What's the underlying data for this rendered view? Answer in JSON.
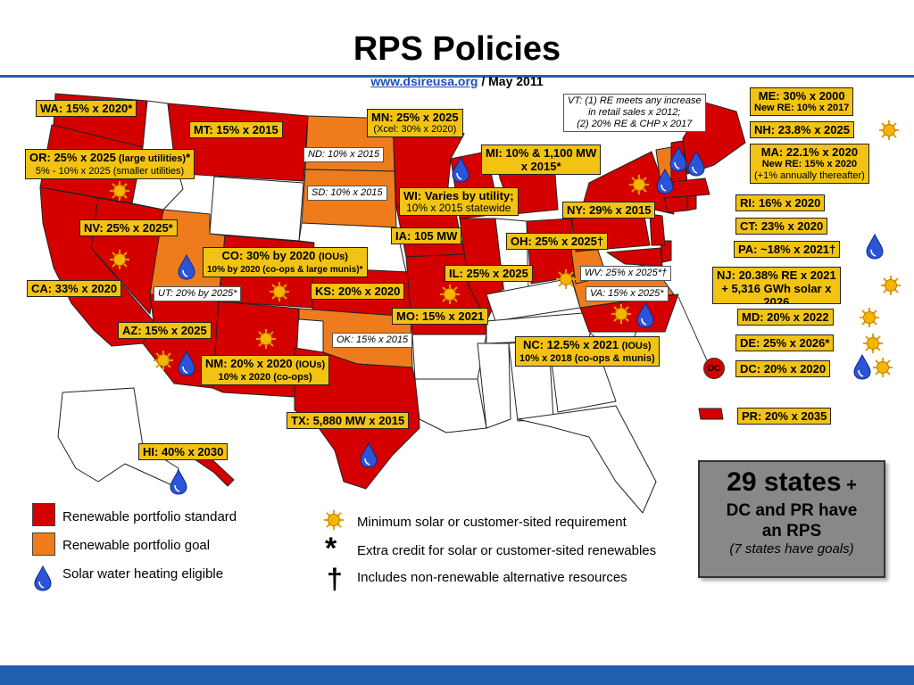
{
  "title": "RPS Policies",
  "source": {
    "link": "www.dsireusa.org",
    "separator": " / ",
    "date": "May 2011"
  },
  "colors": {
    "standard": "#d40000",
    "goal": "#ee7c1c",
    "water": "#2255dd",
    "sun": "#f4b400",
    "label_bg": "#f2c313"
  },
  "labels": {
    "wa": {
      "abbr": "WA:",
      "text": " 15% x 2020*"
    },
    "or": {
      "abbr": "OR",
      "text": ": 25% x 2025",
      "small": " (large utilities)",
      "tail": "*",
      "sub": "5% - 10% x 2025 (smaller utilities)"
    },
    "mt": {
      "abbr": "MT:",
      "text": " 15% x 2015"
    },
    "nv": {
      "abbr": "NV",
      "text": ": 25% x 2025*"
    },
    "co": {
      "abbr": "CO:",
      "text": " 30% by 2020 ",
      "small": "(IOUs)",
      "sub": "10% by 2020 (co-ops & large munis)*"
    },
    "ca": {
      "abbr": "CA:",
      "text": " 33% x 2020"
    },
    "az": {
      "abbr": "AZ:",
      "text": " 15% x 2025"
    },
    "nm": {
      "abbr": "NM:",
      "text": " 20% x 2020 ",
      "small": "(IOUs)",
      "sub": "10% x 2020 (co-ops)"
    },
    "hi": {
      "abbr": "HI:",
      "text": " 40% x 2030"
    },
    "tx": {
      "abbr": "TX:",
      "text": " 5,880 MW x 2015"
    },
    "mn": {
      "abbr": "MN:",
      "text": " 25% x 2025",
      "sub": "(Xcel: 30% x 2020)"
    },
    "wi": {
      "abbr": "WI",
      "text": ": Varies by utility;",
      "sub": "10% x 2015 statewide"
    },
    "ia": {
      "abbr": "IA:",
      "text": " 105 MW"
    },
    "ks": {
      "abbr": "KS:",
      "text": " 20% x 2020"
    },
    "mo": {
      "abbr": "MO:",
      "text": " 15% x 2021"
    },
    "il": {
      "abbr": "IL:",
      "text": " 25% x 2025"
    },
    "oh": {
      "abbr": "OH:",
      "text": " 25% x 2025",
      "tail": "†"
    },
    "mi": {
      "abbr": "MI:",
      "text": " 10% & 1,100 MW",
      "line2": "x 2015*"
    },
    "ny": {
      "abbr": "NY:",
      "text": " 29% x 2015"
    },
    "nc": {
      "abbr": "NC",
      "text": ": 12.5% x 2021 ",
      "small": "(IOUs)",
      "sub": "10% x 2018 (co-ops & munis)"
    },
    "me": {
      "abbr": "ME:",
      "text": " 30% x 2000",
      "sub": "New RE: 10% x 2017"
    },
    "nh": {
      "abbr": "NH:",
      "text": " 23.8% x 2025"
    },
    "ma": {
      "abbr": "MA:",
      "text": " 22.1% x 2020",
      "sub": "New RE:  15% x 2020",
      "sub2": "(+1% annually thereafter)"
    },
    "ri": {
      "abbr": "RI:",
      "text": " 16% x 2020"
    },
    "ct": {
      "abbr": "CT:",
      "text": " 23% x 2020"
    },
    "pa": {
      "abbr": "PA:",
      "text": " ~18% x 2021",
      "tail": "†"
    },
    "nj": {
      "abbr": "NJ:",
      "text": " 20.38% RE x 2021",
      "line2": "+ 5,316 GWh solar x",
      "line3": "2026"
    },
    "md": {
      "abbr": "MD:",
      "text": " 20% x 2022"
    },
    "de": {
      "abbr": "DE:",
      "text": " 25% x 2026*"
    },
    "dc": {
      "abbr": "DC:",
      "text": " 20% x 2020"
    },
    "pr": {
      "abbr": "PR:",
      "text": " 20% x 2035"
    }
  },
  "notes": {
    "nd": "ND: 10% x 2015",
    "sd": "SD: 10% x 2015",
    "ut": "UT: 20% by 2025*",
    "ok": "OK: 15% x 2015",
    "wv": "WV: 25% x 2025*†",
    "va": "VA: 15% x 2025*",
    "vt_l1": "VT: (1) RE meets any increase",
    "vt_l2": "in retail sales x 2012;",
    "vt_l3": "(2) 20% RE & CHP x 2017"
  },
  "dc_marker": "DC",
  "legend": {
    "standard": "Renewable portfolio standard",
    "goal": "Renewable portfolio goal",
    "water": "Solar water heating eligible",
    "sun": "Minimum solar or customer-sited requirement",
    "star_symbol": "*",
    "star": "Extra credit for solar or customer-sited renewables",
    "dagger_symbol": "†",
    "dagger": "Includes non-renewable alternative resources"
  },
  "summary": {
    "line1": "29 states",
    "line1b": " +",
    "line2": "DC and PR have",
    "line3": "an RPS",
    "line4": "(7 states have goals)"
  }
}
